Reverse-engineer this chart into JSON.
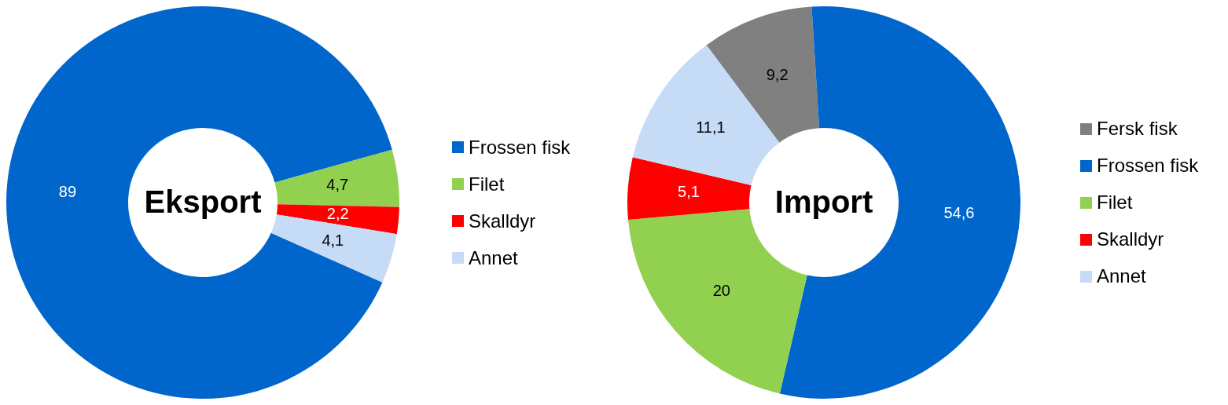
{
  "chart_data": [
    {
      "type": "donut",
      "title": "Eksport",
      "categories": [
        "Frossen fisk",
        "Filet",
        "Skalldyr",
        "Annet"
      ],
      "values": [
        89,
        4.7,
        2.2,
        4.1
      ],
      "colors": [
        "#0066cc",
        "#92d050",
        "#ff0000",
        "#c6dbf5"
      ],
      "value_labels": [
        "89",
        "4,7",
        "2,2",
        "4,1"
      ],
      "legend": "right"
    },
    {
      "type": "donut",
      "title": "Import",
      "categories": [
        "Fersk fisk",
        "Frossen fisk",
        "Filet",
        "Skalldyr",
        "Annet"
      ],
      "values": [
        9.2,
        54.6,
        20,
        5.1,
        11.1
      ],
      "colors": [
        "#808080",
        "#0066cc",
        "#92d050",
        "#ff0000",
        "#c6dbf5"
      ],
      "value_labels": [
        "9,2",
        "54,6",
        "20",
        "5,1",
        "11,1"
      ],
      "legend": "right"
    }
  ]
}
